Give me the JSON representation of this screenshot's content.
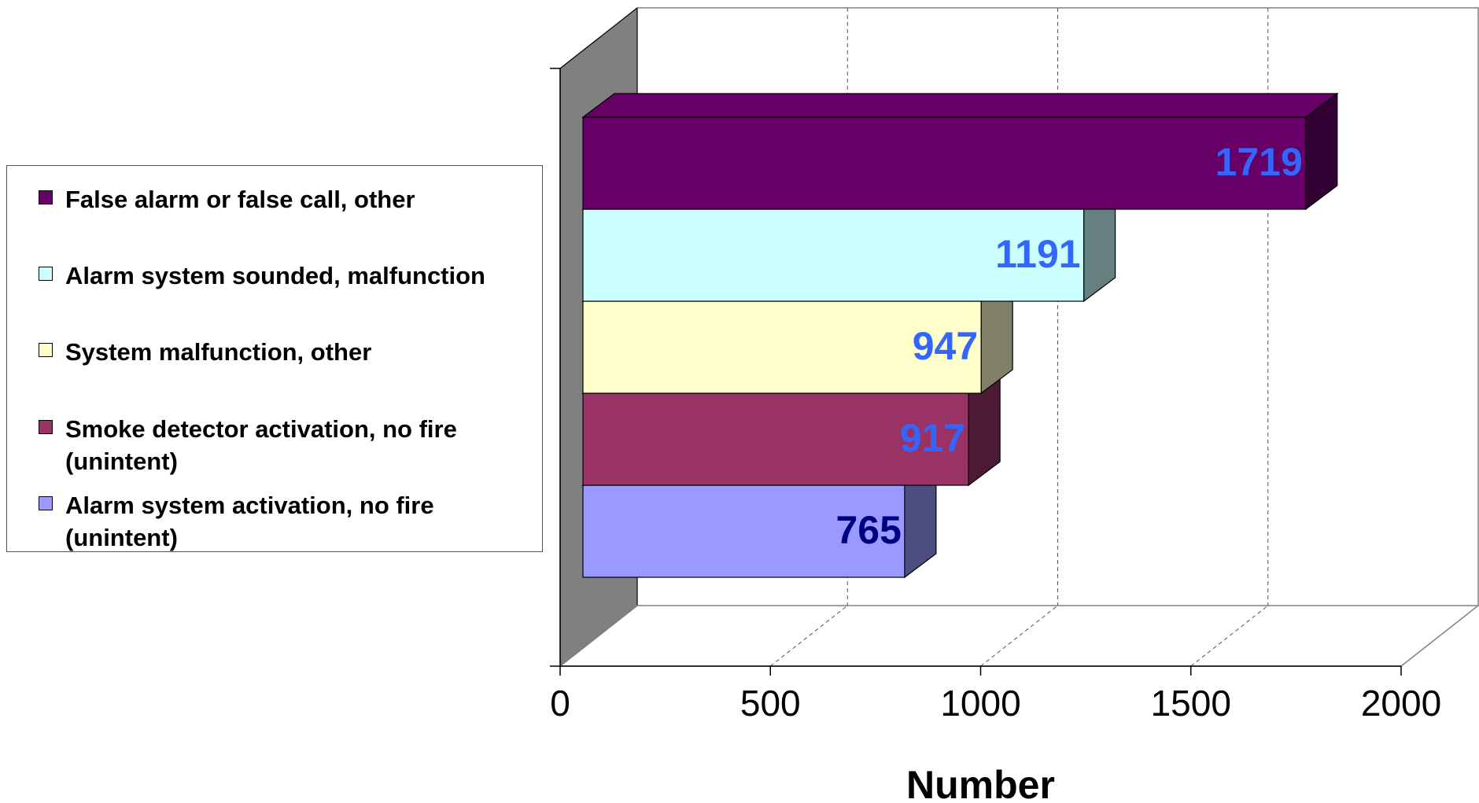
{
  "chart_data": {
    "type": "bar",
    "orientation": "horizontal",
    "style": "3d",
    "xlabel": "Number",
    "xlim": [
      0,
      2000
    ],
    "x_ticks": [
      "0",
      "500",
      "1000",
      "1500",
      "2000"
    ],
    "grid": true,
    "legend_position": "left",
    "categories": [
      "False alarm or false call, other",
      "Alarm system sounded, malfunction",
      "System malfunction, other",
      "Smoke detector activation, no fire (unintent)",
      "Alarm system activation, no fire (unintent)"
    ],
    "values": [
      1719,
      1191,
      947,
      917,
      765
    ],
    "data_labels": [
      "1719",
      "1191",
      "947",
      "917",
      "765"
    ],
    "colors": [
      "#660066",
      "#ccffff",
      "#ffffcc",
      "#993366",
      "#9999ff"
    ],
    "side_colors": [
      "#330033",
      "#668080",
      "#808066",
      "#4d1a33",
      "#4d4d80"
    ],
    "label_colors": [
      "#3366ff",
      "#3366ff",
      "#3366ff",
      "#3366ff",
      "#000080"
    ]
  },
  "legend": {
    "items": [
      {
        "label": "False alarm or false call, other",
        "color": "#660066"
      },
      {
        "label": "Alarm system sounded, malfunction",
        "color": "#ccffff"
      },
      {
        "label": "System malfunction, other",
        "color": "#ffffcc"
      },
      {
        "label": "Smoke detector activation, no fire\n(unintent)",
        "color": "#993366"
      },
      {
        "label": "Alarm system activation, no fire\n(unintent)",
        "color": "#9999ff"
      }
    ]
  }
}
